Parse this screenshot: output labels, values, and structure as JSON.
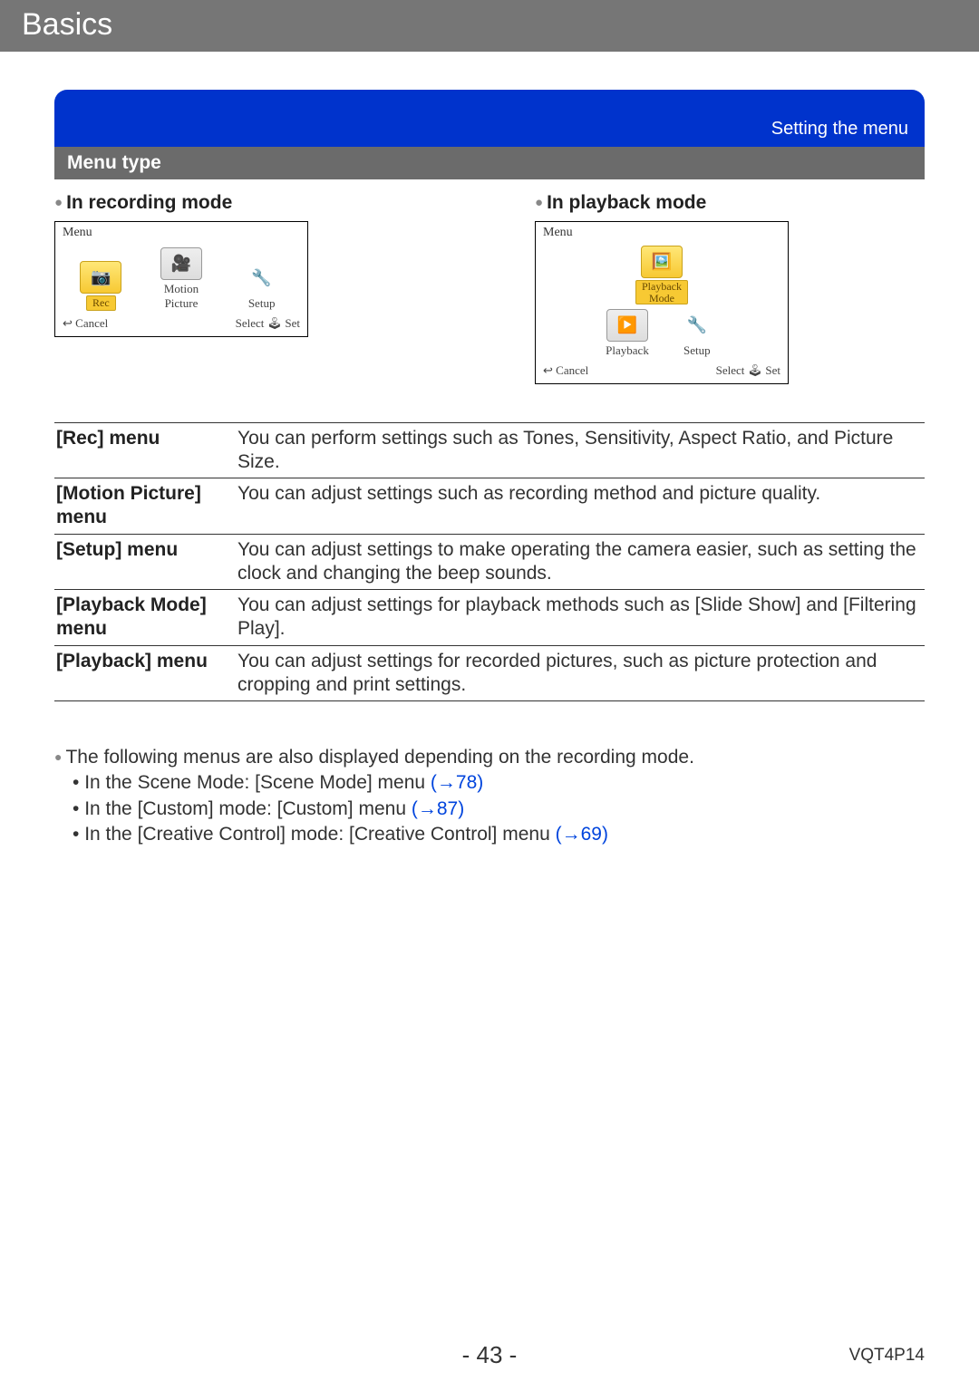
{
  "header": {
    "title": "Basics"
  },
  "setting_bar": "Setting the menu",
  "menutype_bar": "Menu type",
  "modes": {
    "recording": {
      "heading": "In recording mode",
      "menu_label": "Menu",
      "items": [
        {
          "label": "Rec",
          "selected": true
        },
        {
          "label": "Motion\nPicture",
          "selected": false
        },
        {
          "label": "Setup",
          "selected": false
        }
      ],
      "footer_left": "Cancel",
      "footer_right": "Select 🕹 Set"
    },
    "playback": {
      "heading": "In playback mode",
      "menu_label": "Menu",
      "top_item": {
        "label": "Playback\nMode",
        "selected": true
      },
      "row_items": [
        {
          "label": "Playback",
          "selected": false
        },
        {
          "label": "Setup",
          "selected": false
        }
      ],
      "footer_left": "Cancel",
      "footer_right": "Select 🕹 Set"
    }
  },
  "menu_table": [
    {
      "label": "[Rec] menu",
      "desc": "You can perform settings such as Tones, Sensitivity, Aspect Ratio, and Picture Size."
    },
    {
      "label": "[Motion Picture] menu",
      "desc": "You can adjust settings such as recording method and picture quality."
    },
    {
      "label": "[Setup] menu",
      "desc": "You can adjust settings to make operating the camera easier, such as setting the clock and changing the beep sounds."
    },
    {
      "label": "[Playback Mode] menu",
      "desc": "You can adjust settings for playback methods such as [Slide Show] and [Filtering Play]."
    },
    {
      "label": "[Playback] menu",
      "desc": "You can adjust settings for recorded pictures, such as picture protection and cropping and print settings."
    }
  ],
  "notes": {
    "lead": "The following menus are also displayed depending on the recording mode.",
    "items": [
      {
        "text": "In the Scene Mode: [Scene Mode] menu ",
        "xref": "(→78)"
      },
      {
        "text": "In the [Custom] mode: [Custom] menu ",
        "xref": "(→87)"
      },
      {
        "text": "In the [Creative Control] mode: [Creative Control] menu ",
        "xref": "(→69)"
      }
    ]
  },
  "footer": {
    "page": "- 43 -",
    "docid": "VQT4P14"
  },
  "colors": {
    "header_bg": "#767676",
    "setting_bg": "#0033cc",
    "menutype_bg": "#6b6b6b",
    "xref": "#0044dd",
    "sel_bg": "#f7c933"
  }
}
